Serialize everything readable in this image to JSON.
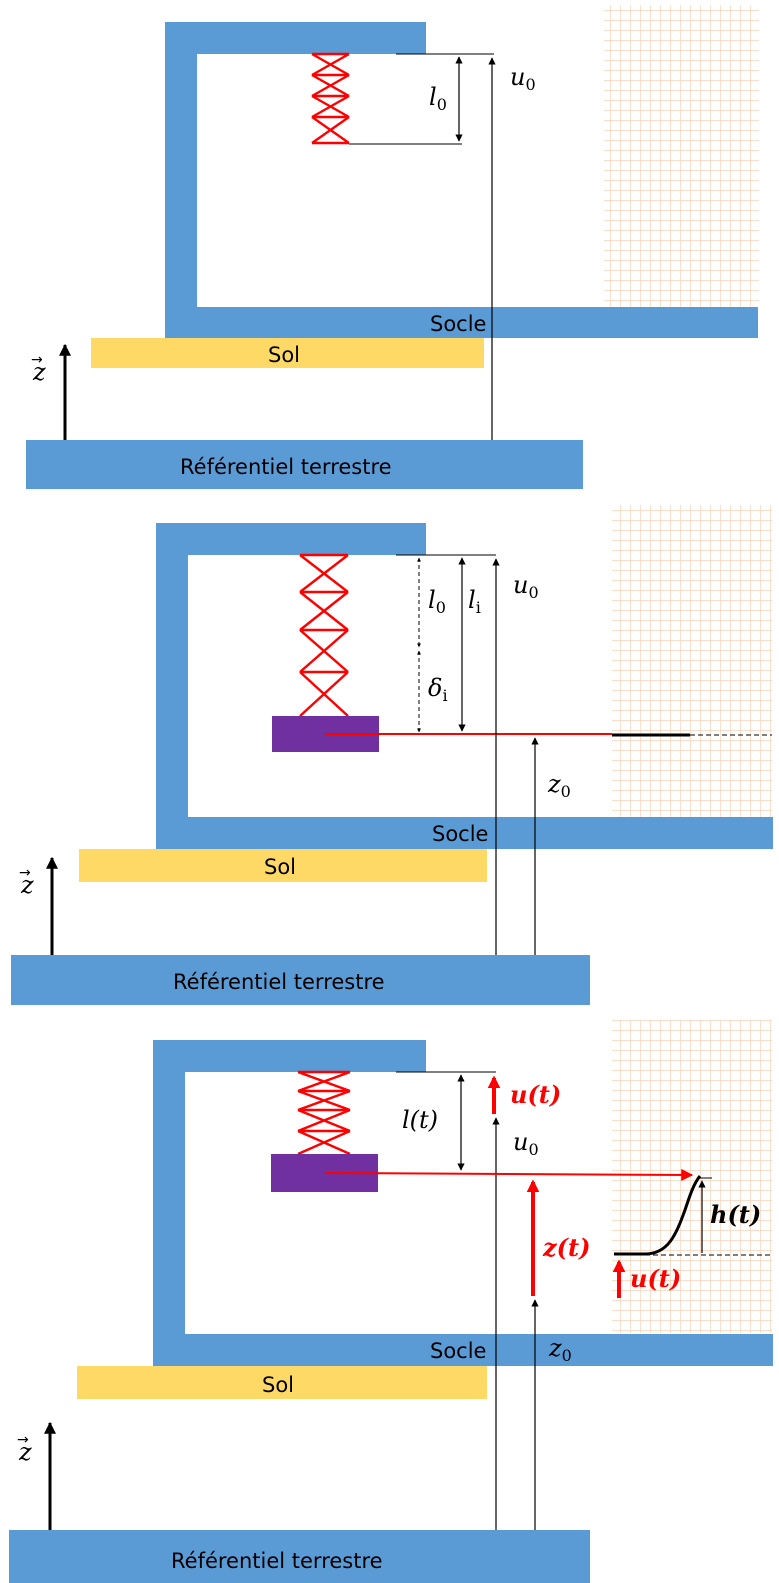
{
  "colors": {
    "frame": "#5b9bd5",
    "sol": "#ffd966",
    "spring": "#ff0000",
    "mass": "#7030a0",
    "grid": "#f8cbad",
    "red": "#ff0000",
    "black": "#000000"
  },
  "labels": {
    "socle": "Socle",
    "sol": "Sol",
    "referentiel": "Référentiel terrestre",
    "z_axis": "z",
    "z_axis_arrow": "→"
  },
  "math": {
    "l": "l",
    "sub_0": "0",
    "sub_i": "i",
    "u": "u",
    "delta": "δ",
    "z": "z",
    "l_t": "l(t)",
    "u_t": "u(t)",
    "z_t": "z(t)",
    "h_t": "h(t)"
  }
}
